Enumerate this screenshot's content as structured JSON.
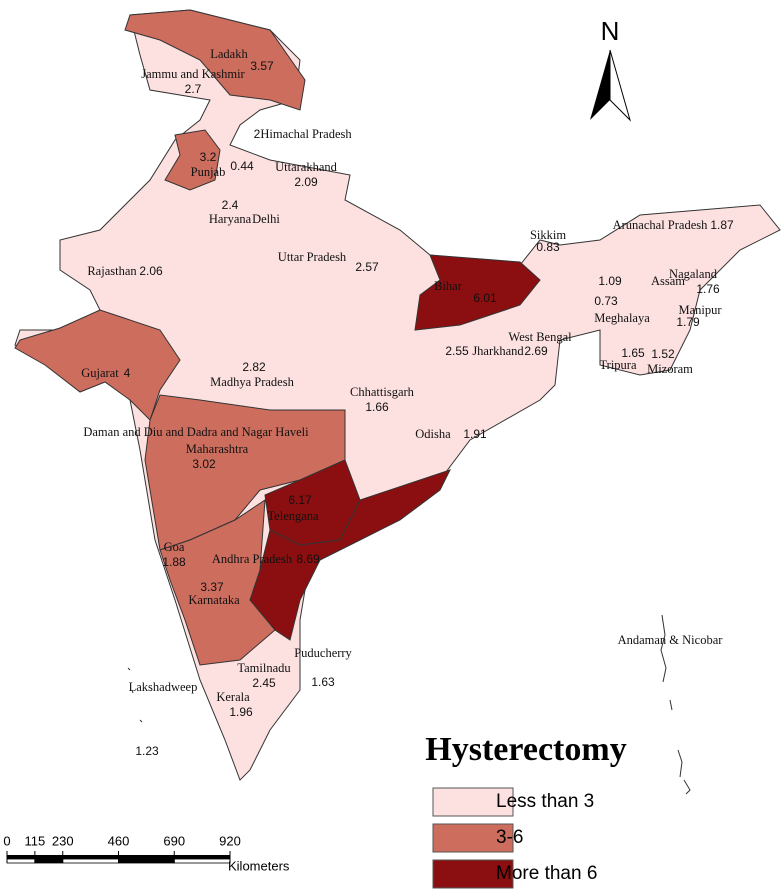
{
  "map": {
    "title": "Hysterectomy",
    "north_label": "N",
    "legend": [
      {
        "label": "Less than 3",
        "color": "#fde1e1"
      },
      {
        "label": "3-6",
        "color": "#cd6d5e"
      },
      {
        "label": "More than 6",
        "color": "#8b0f10"
      }
    ],
    "scale_bar": {
      "ticks": [
        0,
        115,
        230,
        460,
        690,
        920
      ],
      "units": "Kilometers"
    },
    "regions": [
      {
        "name": "Ladakh",
        "value": 3.57,
        "color": "#cd6d5e"
      },
      {
        "name": "Jammu and Kashmir",
        "value": 2.7
      },
      {
        "name": "Himachal Pradesh",
        "value": 2
      },
      {
        "name": "Punjab",
        "value": 3.2,
        "color": "#cd6d5e"
      },
      {
        "name": null,
        "value": 0.44
      },
      {
        "name": "Uttarakhand",
        "value": 2.09
      },
      {
        "name": "Haryana",
        "value": 2.4
      },
      {
        "name": "Delhi",
        "value": null
      },
      {
        "name": "Rajasthan",
        "value": 2.06
      },
      {
        "name": "Uttar Pradesh",
        "value": 2.57
      },
      {
        "name": "Bihar",
        "value": 6.01,
        "color": "#8b0f10"
      },
      {
        "name": "Sikkim",
        "value": 0.83
      },
      {
        "name": "Arunachal Pradesh",
        "value": 1.87
      },
      {
        "name": "Assam",
        "value": 1.09
      },
      {
        "name": "Nagaland",
        "value": 1.76
      },
      {
        "name": "Meghalaya",
        "value": 0.73
      },
      {
        "name": "Manipur",
        "value": 1.79
      },
      {
        "name": "Tripura",
        "value": 1.65
      },
      {
        "name": "Mizoram",
        "value": 1.52
      },
      {
        "name": "West Bengal",
        "value": 2.69
      },
      {
        "name": "Jharkhand",
        "value": 2.55
      },
      {
        "name": "Madhya Pradesh",
        "value": 2.82
      },
      {
        "name": "Chhattisgarh",
        "value": 1.66
      },
      {
        "name": "Odisha",
        "value": 1.91
      },
      {
        "name": "Gujarat",
        "value": 4,
        "color": "#cd6d5e"
      },
      {
        "name": "Daman and Diu and Dadra and Nagar Haveli",
        "value": null
      },
      {
        "name": "Maharashtra",
        "value": 3.02,
        "color": "#cd6d5e"
      },
      {
        "name": "Telengana",
        "value": 6.17,
        "color": "#8b0f10"
      },
      {
        "name": "Andhra Pradesh",
        "value": 8.69,
        "color": "#8b0f10"
      },
      {
        "name": "Goa",
        "value": 1.88
      },
      {
        "name": "Karnataka",
        "value": 3.37,
        "color": "#cd6d5e"
      },
      {
        "name": "Puducherry",
        "value": 1.63
      },
      {
        "name": "Tamilnadu",
        "value": 2.45
      },
      {
        "name": "Kerala",
        "value": 1.96
      },
      {
        "name": "Lakshadweep",
        "value": 1.23
      },
      {
        "name": "Andaman & Nicobar",
        "value": null
      }
    ]
  }
}
